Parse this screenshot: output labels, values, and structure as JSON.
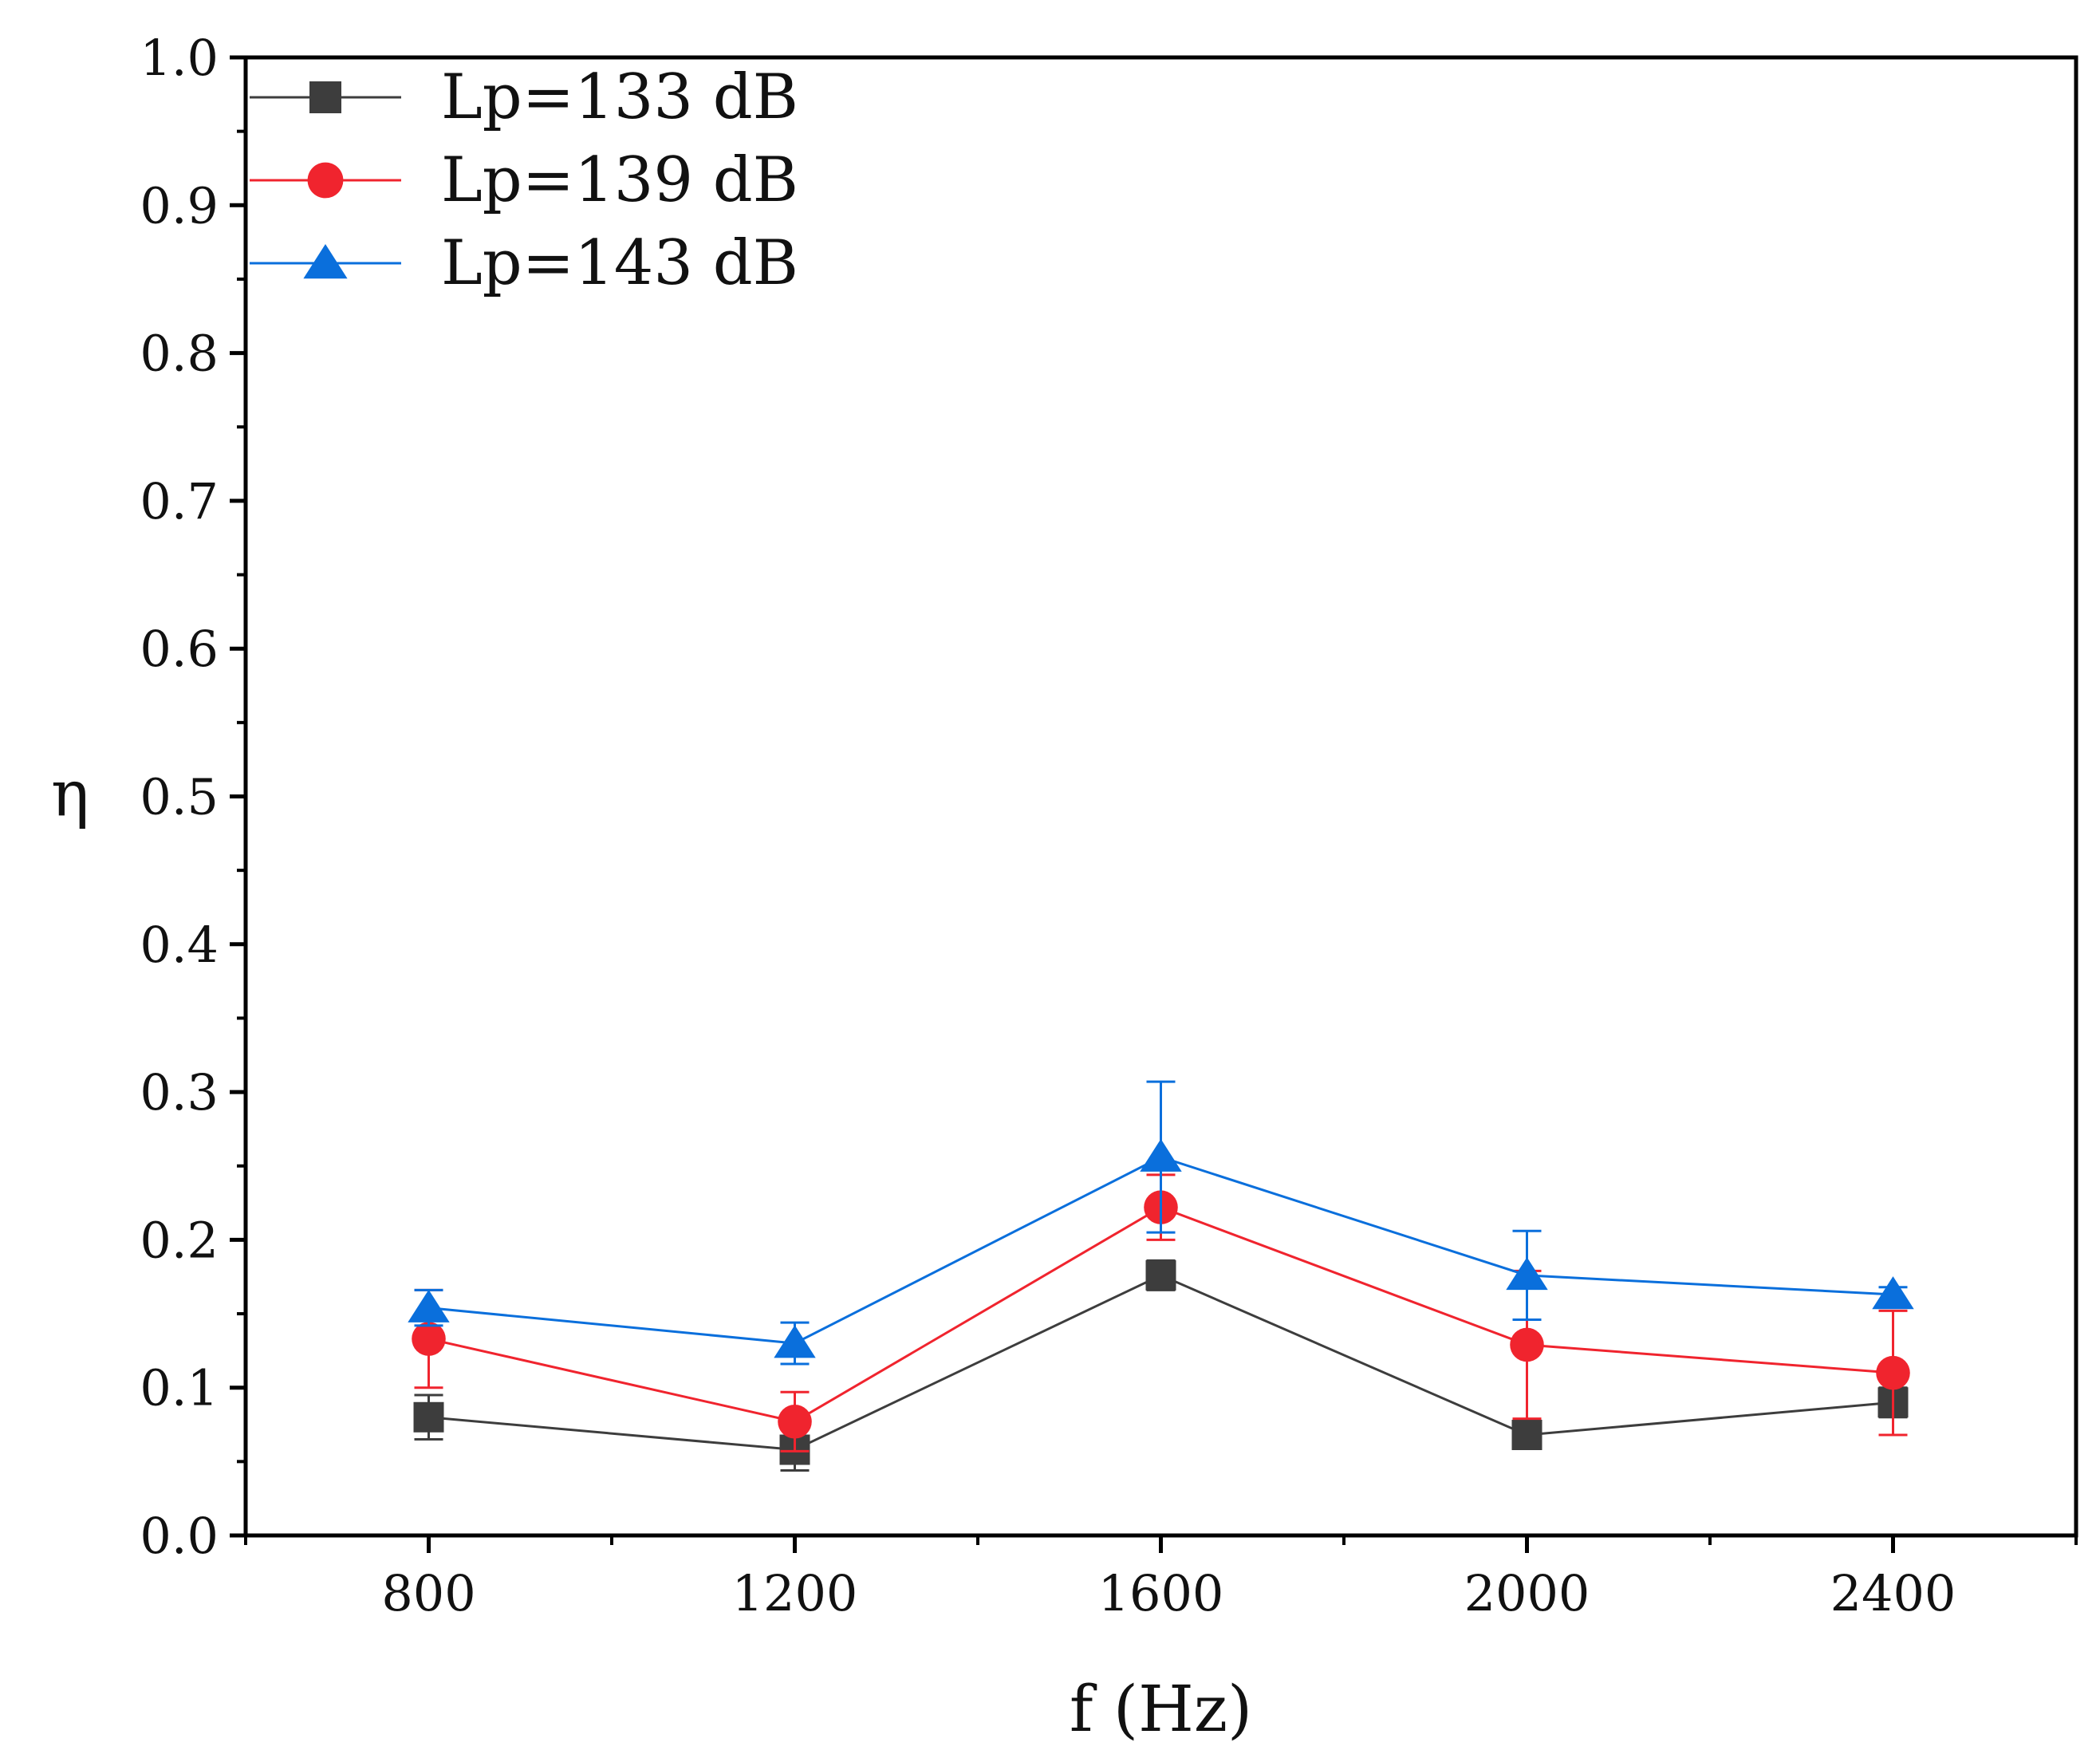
{
  "chart_data": {
    "type": "line",
    "title": "",
    "xlabel": "f (Hz)",
    "ylabel": "η",
    "xlim": [
      600,
      2600
    ],
    "ylim": [
      0.0,
      1.0
    ],
    "x_ticks": [
      800,
      1200,
      1600,
      2000,
      2400
    ],
    "x_tick_labels": [
      "800",
      "1200",
      "1600",
      "2000",
      "2400"
    ],
    "y_ticks": [
      0.0,
      0.1,
      0.2,
      0.3,
      0.4,
      0.5,
      0.6,
      0.7,
      0.8,
      0.9,
      1.0
    ],
    "y_tick_labels": [
      "0.0",
      "0.1",
      "0.2",
      "0.3",
      "0.4",
      "0.5",
      "0.6",
      "0.7",
      "0.8",
      "0.9",
      "1.0"
    ],
    "grid": false,
    "legend_position": "top-left",
    "x": [
      800,
      1200,
      1600,
      2000,
      2400
    ],
    "series": [
      {
        "name": "Lp=133  dB",
        "color": "#3d3d3d",
        "marker": "square",
        "values": [
          0.08,
          0.058,
          0.176,
          0.068,
          0.09
        ],
        "error": [
          0.015,
          0.014,
          0.01,
          0.005,
          0.01
        ]
      },
      {
        "name": "Lp=139  dB",
        "color": "#f0242e",
        "marker": "circle",
        "values": [
          0.133,
          0.077,
          0.222,
          0.129,
          0.11
        ],
        "error": [
          0.033,
          0.02,
          0.022,
          0.05,
          0.042
        ]
      },
      {
        "name": "Lp=143  dB",
        "color": "#0a6fdc",
        "marker": "triangle",
        "values": [
          0.154,
          0.13,
          0.256,
          0.176,
          0.163
        ],
        "error": [
          0.012,
          0.014,
          0.051,
          0.03,
          0.005
        ]
      }
    ]
  }
}
